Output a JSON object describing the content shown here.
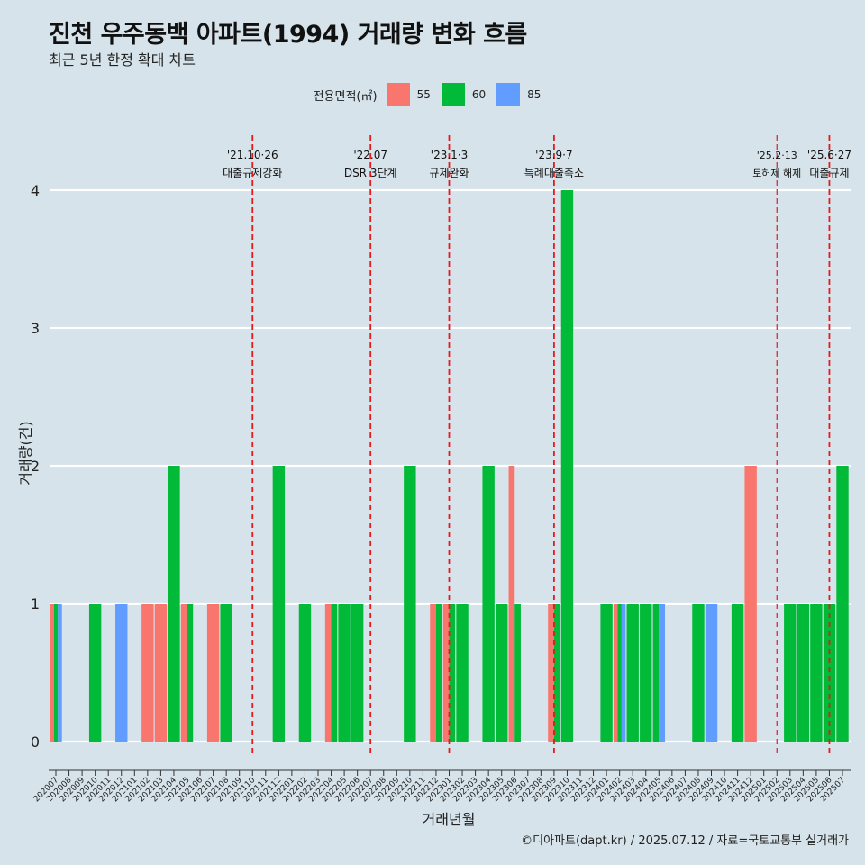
{
  "header": {
    "title": "진천 우주동백 아파트(1994) 거래량 변화 흐름",
    "subtitle": "최근 5년 한정 확대 차트"
  },
  "legend": {
    "title": "전용면적(㎡)",
    "items": [
      {
        "label": "55",
        "color": "#f8766d"
      },
      {
        "label": "60",
        "color": "#00ba38"
      },
      {
        "label": "85",
        "color": "#619cff"
      }
    ]
  },
  "caption": "©디아파트(dapt.kr) / 2025.07.12 / 자료=국토교통부 실거래가",
  "chart_data": {
    "type": "bar",
    "xlabel": "거래년월",
    "ylabel": "거래량(건)",
    "ylim": [
      0,
      4
    ],
    "yticks": [
      0,
      1,
      2,
      3,
      4
    ],
    "grid": true,
    "legend_position": "top",
    "categories": [
      "202007",
      "202008",
      "202009",
      "202010",
      "202011",
      "202012",
      "202101",
      "202102",
      "202103",
      "202104",
      "202105",
      "202106",
      "202107",
      "202108",
      "202109",
      "202110",
      "202111",
      "202112",
      "202201",
      "202202",
      "202203",
      "202204",
      "202205",
      "202206",
      "202207",
      "202208",
      "202209",
      "202210",
      "202211",
      "202212",
      "202301",
      "202302",
      "202303",
      "202304",
      "202305",
      "202306",
      "202307",
      "202308",
      "202309",
      "202310",
      "202311",
      "202312",
      "202401",
      "202402",
      "202403",
      "202404",
      "202405",
      "202406",
      "202407",
      "202408",
      "202409",
      "202410",
      "202411",
      "202412",
      "202501",
      "202502",
      "202503",
      "202504",
      "202505",
      "202506",
      "202507"
    ],
    "series": [
      {
        "name": "55",
        "color": "#f8766d",
        "values": [
          1,
          0,
          0,
          0,
          0,
          0,
          0,
          1,
          1,
          0,
          1,
          0,
          1,
          0,
          0,
          0,
          0,
          0,
          0,
          0,
          0,
          1,
          0,
          0,
          0,
          0,
          0,
          0,
          0,
          1,
          1,
          0,
          0,
          0,
          0,
          2,
          0,
          0,
          1,
          0,
          0,
          0,
          0,
          1,
          0,
          0,
          0,
          0,
          0,
          0,
          0,
          0,
          0,
          2,
          0,
          0,
          0,
          0,
          0,
          0,
          0
        ]
      },
      {
        "name": "60",
        "color": "#00ba38",
        "values": [
          1,
          0,
          0,
          1,
          0,
          0,
          0,
          0,
          0,
          2,
          1,
          0,
          0,
          1,
          0,
          0,
          0,
          2,
          0,
          1,
          0,
          1,
          1,
          1,
          0,
          0,
          0,
          2,
          0,
          1,
          1,
          1,
          0,
          2,
          1,
          1,
          0,
          0,
          1,
          4,
          0,
          0,
          1,
          1,
          1,
          1,
          1,
          0,
          0,
          1,
          0,
          0,
          1,
          0,
          0,
          0,
          1,
          1,
          1,
          1,
          2
        ]
      },
      {
        "name": "85",
        "color": "#619cff",
        "values": [
          1,
          0,
          0,
          0,
          0,
          1,
          0,
          0,
          0,
          0,
          0,
          0,
          0,
          0,
          0,
          0,
          0,
          0,
          0,
          0,
          0,
          0,
          0,
          0,
          0,
          0,
          0,
          0,
          0,
          0,
          0,
          0,
          0,
          0,
          0,
          0,
          0,
          0,
          0,
          0,
          0,
          0,
          0,
          1,
          0,
          0,
          1,
          0,
          0,
          0,
          1,
          0,
          0,
          0,
          0,
          0,
          0,
          0,
          0,
          0,
          0
        ]
      }
    ],
    "annotations": [
      {
        "x": "202110",
        "date": "'21.10·26",
        "label": "대출규제강화",
        "style": "dashed",
        "color": "#e41a1c"
      },
      {
        "x": "202207",
        "date": "'22.07",
        "label": "DSR 3단계",
        "style": "dashed",
        "color": "#e41a1c"
      },
      {
        "x": "202301",
        "date": "'23.1·3",
        "label": "규제완화",
        "style": "dashed",
        "color": "#e41a1c"
      },
      {
        "x": "202309",
        "date": "'23.9·7",
        "label": "특례대출축소",
        "style": "dashed",
        "color": "#e41a1c"
      },
      {
        "x": "202502",
        "date": "'25.2·13",
        "label": "토허제 해제",
        "style": "dashed-thin",
        "color": "#e41a1c"
      },
      {
        "x": "202506",
        "date": "'25.6·27",
        "label": "대출규제",
        "style": "dashed",
        "color": "#e41a1c"
      }
    ]
  }
}
